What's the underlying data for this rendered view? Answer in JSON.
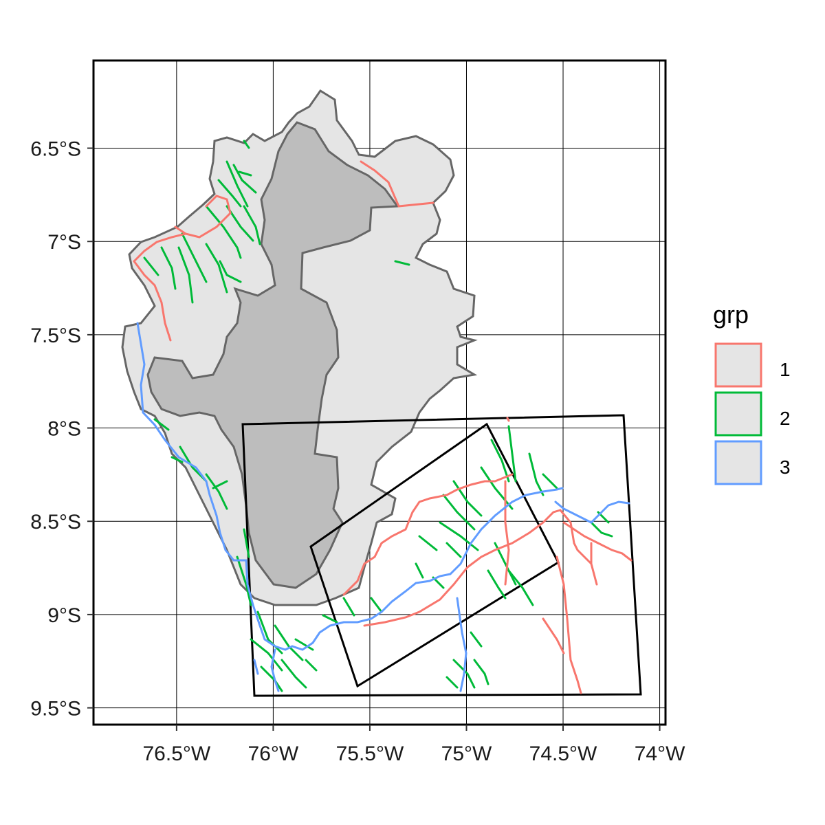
{
  "chart_data": {
    "type": "map",
    "x_ticks": [
      "76.5°W",
      "76°W",
      "75.5°W",
      "75°W",
      "74.5°W",
      "74°W"
    ],
    "y_ticks": [
      "6.5°S",
      "7°S",
      "7.5°S",
      "8°S",
      "8.5°S",
      "9°S",
      "9.5°S"
    ],
    "x_tick_values": [
      -76.5,
      -76.0,
      -75.5,
      -75.0,
      -74.5,
      -74.0
    ],
    "y_tick_values": [
      -6.5,
      -7.0,
      -7.5,
      -8.0,
      -8.5,
      -9.0,
      -9.5
    ],
    "xlim": [
      -76.93,
      -73.97
    ],
    "ylim": [
      -9.59,
      -6.03
    ],
    "grid": true,
    "legend": {
      "title": "grp",
      "position": "right",
      "entries": [
        {
          "label": "1",
          "color": "#F8766D"
        },
        {
          "label": "2",
          "color": "#00BA38"
        },
        {
          "label": "3",
          "color": "#619CFF"
        }
      ]
    },
    "fills": {
      "outer_region": "#E5E5E5",
      "inner_region": "#BDBDBD",
      "region_border": "#666666"
    }
  }
}
